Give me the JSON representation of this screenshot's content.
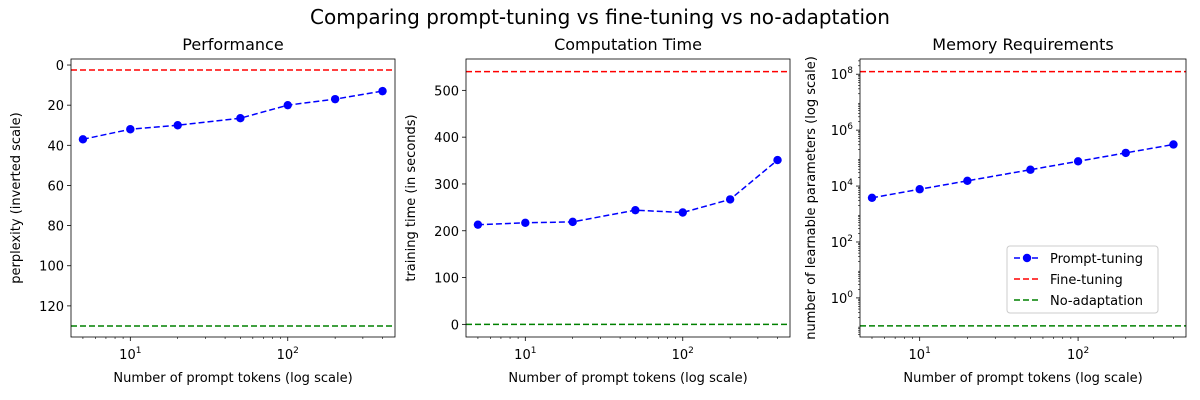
{
  "figure": {
    "title": "Comparing prompt-tuning vs fine-tuning vs no-adaptation"
  },
  "legend": {
    "placement": "lower-right of third panel",
    "entries": [
      {
        "label": "Prompt-tuning",
        "color": "#0000ff",
        "style": "dashed-with-circle-markers"
      },
      {
        "label": "Fine-tuning",
        "color": "#ff0000",
        "style": "dashed"
      },
      {
        "label": "No-adaptation",
        "color": "#008000",
        "style": "dashed"
      }
    ]
  },
  "chart_data": [
    {
      "type": "line",
      "title": "Performance",
      "xlabel": "Number of prompt tokens (log scale)",
      "ylabel": "perplexity (inverted scale)",
      "xscale": "log",
      "yscale": "linear",
      "y_inverted": true,
      "xlim": [
        4.2,
        480
      ],
      "ylim": [
        135.5,
        -3
      ],
      "xticks": [
        {
          "v": 10,
          "b": "10",
          "e": "1"
        },
        {
          "v": 100,
          "b": "10",
          "e": "2"
        }
      ],
      "yticks": [
        {
          "v": 0,
          "t": "0"
        },
        {
          "v": 20,
          "t": "20"
        },
        {
          "v": 40,
          "t": "40"
        },
        {
          "v": 60,
          "t": "60"
        },
        {
          "v": 80,
          "t": "80"
        },
        {
          "v": 100,
          "t": "100"
        },
        {
          "v": 120,
          "t": "120"
        }
      ],
      "series": [
        {
          "name": "Prompt-tuning",
          "x": [
            5,
            10,
            20,
            50,
            100,
            200,
            400
          ],
          "y": [
            37,
            32,
            30,
            26.5,
            20,
            17,
            13
          ]
        }
      ],
      "hlines": [
        {
          "name": "Fine-tuning",
          "y": 2.5
        },
        {
          "name": "No-adaptation",
          "y": 130
        }
      ]
    },
    {
      "type": "line",
      "title": "Computation Time",
      "xlabel": "Number of prompt tokens (log scale)",
      "ylabel": "training time (in seconds)",
      "xscale": "log",
      "yscale": "linear",
      "y_inverted": false,
      "xlim": [
        4.2,
        480
      ],
      "ylim": [
        -27,
        567
      ],
      "xticks": [
        {
          "v": 10,
          "b": "10",
          "e": "1"
        },
        {
          "v": 100,
          "b": "10",
          "e": "2"
        }
      ],
      "yticks": [
        {
          "v": 0,
          "t": "0"
        },
        {
          "v": 100,
          "t": "100"
        },
        {
          "v": 200,
          "t": "200"
        },
        {
          "v": 300,
          "t": "300"
        },
        {
          "v": 400,
          "t": "400"
        },
        {
          "v": 500,
          "t": "500"
        }
      ],
      "series": [
        {
          "name": "Prompt-tuning",
          "x": [
            5,
            10,
            20,
            50,
            100,
            200,
            400
          ],
          "y": [
            213,
            217,
            219,
            244,
            239,
            267,
            351
          ]
        }
      ],
      "hlines": [
        {
          "name": "Fine-tuning",
          "y": 540
        },
        {
          "name": "No-adaptation",
          "y": 0
        }
      ]
    },
    {
      "type": "line",
      "title": "Memory Requirements",
      "xlabel": "Number of prompt tokens (log scale)",
      "ylabel": "number of learnable parameters (log scale)",
      "xscale": "log",
      "yscale": "log",
      "y_inverted": false,
      "xlim": [
        4.2,
        480
      ],
      "ylim": [
        0.04,
        350000000
      ],
      "xticks": [
        {
          "v": 10,
          "b": "10",
          "e": "1"
        },
        {
          "v": 100,
          "b": "10",
          "e": "2"
        }
      ],
      "yticks": [
        {
          "v": 1,
          "b": "10",
          "e": "0"
        },
        {
          "v": 100,
          "b": "10",
          "e": "2"
        },
        {
          "v": 10000,
          "b": "10",
          "e": "4"
        },
        {
          "v": 1000000,
          "b": "10",
          "e": "6"
        },
        {
          "v": 100000000,
          "b": "10",
          "e": "8"
        }
      ],
      "series": [
        {
          "name": "Prompt-tuning",
          "x": [
            5,
            10,
            20,
            50,
            100,
            200,
            400
          ],
          "y": [
            3800,
            7700,
            15400,
            38400,
            76800,
            153600,
            307200
          ]
        }
      ],
      "hlines": [
        {
          "name": "Fine-tuning",
          "y": 124000000
        },
        {
          "name": "No-adaptation",
          "y": 0.1
        }
      ]
    }
  ]
}
